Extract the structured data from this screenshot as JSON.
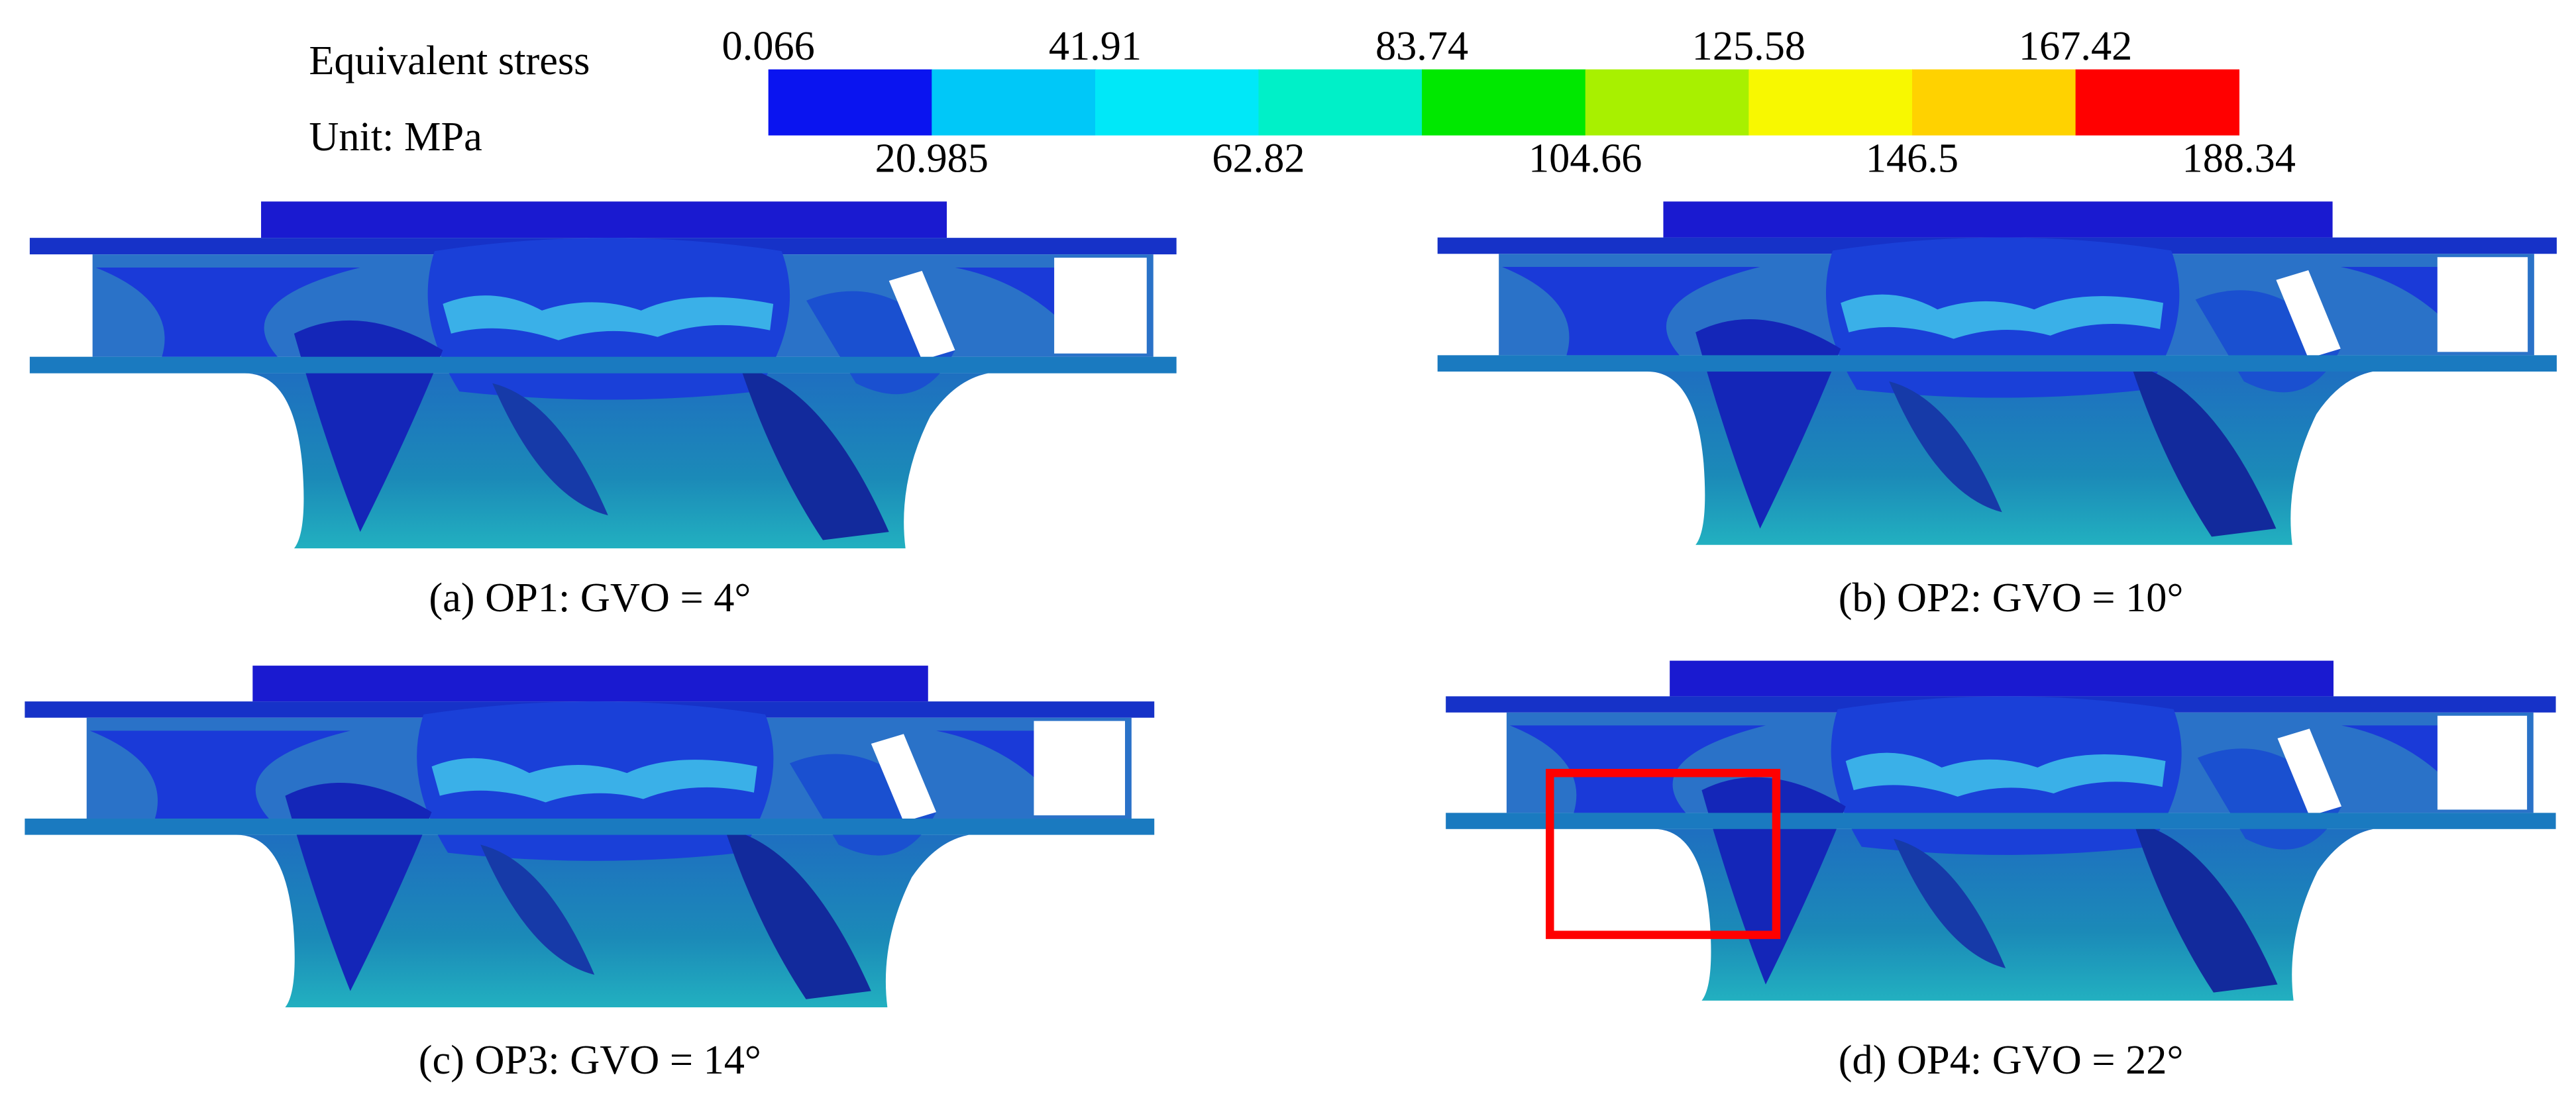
{
  "legend": {
    "title": "Equivalent stress",
    "unit": "Unit: MPa",
    "ticks": [
      0.066,
      20.985,
      41.91,
      62.82,
      83.74,
      104.66,
      125.58,
      146.5,
      167.42,
      188.34
    ],
    "colors": [
      "#0a14f0",
      "#00c8f8",
      "#00e8f8",
      "#00f0c8",
      "#00e800",
      "#a8f000",
      "#f8f800",
      "#ffd200",
      "#ff0000"
    ]
  },
  "panels": [
    {
      "caption": "(a) OP1: GVO = 4°"
    },
    {
      "caption": "(b) OP2: GVO = 10°"
    },
    {
      "caption": "(c) OP3: GVO = 14°"
    },
    {
      "caption": "(d) OP4: GVO = 22°"
    }
  ]
}
